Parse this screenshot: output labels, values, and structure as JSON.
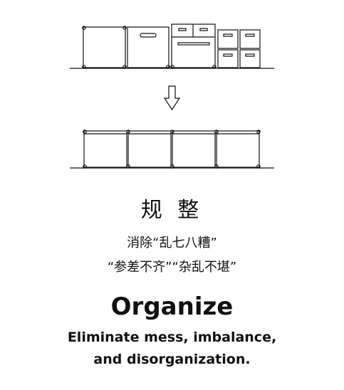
{
  "heading_cn": "规 整",
  "lines_cn": [
    "消除“乱七八糟”",
    "“参差不齐”“杂乱不堪”"
  ],
  "heading_en": "Organize",
  "subtitle_en": [
    "Eliminate mess, imbalance,",
    "and disorganization."
  ],
  "colors": {
    "ink": "#111111",
    "background": "#ffffff"
  },
  "icons": [
    "down-arrow-icon"
  ]
}
